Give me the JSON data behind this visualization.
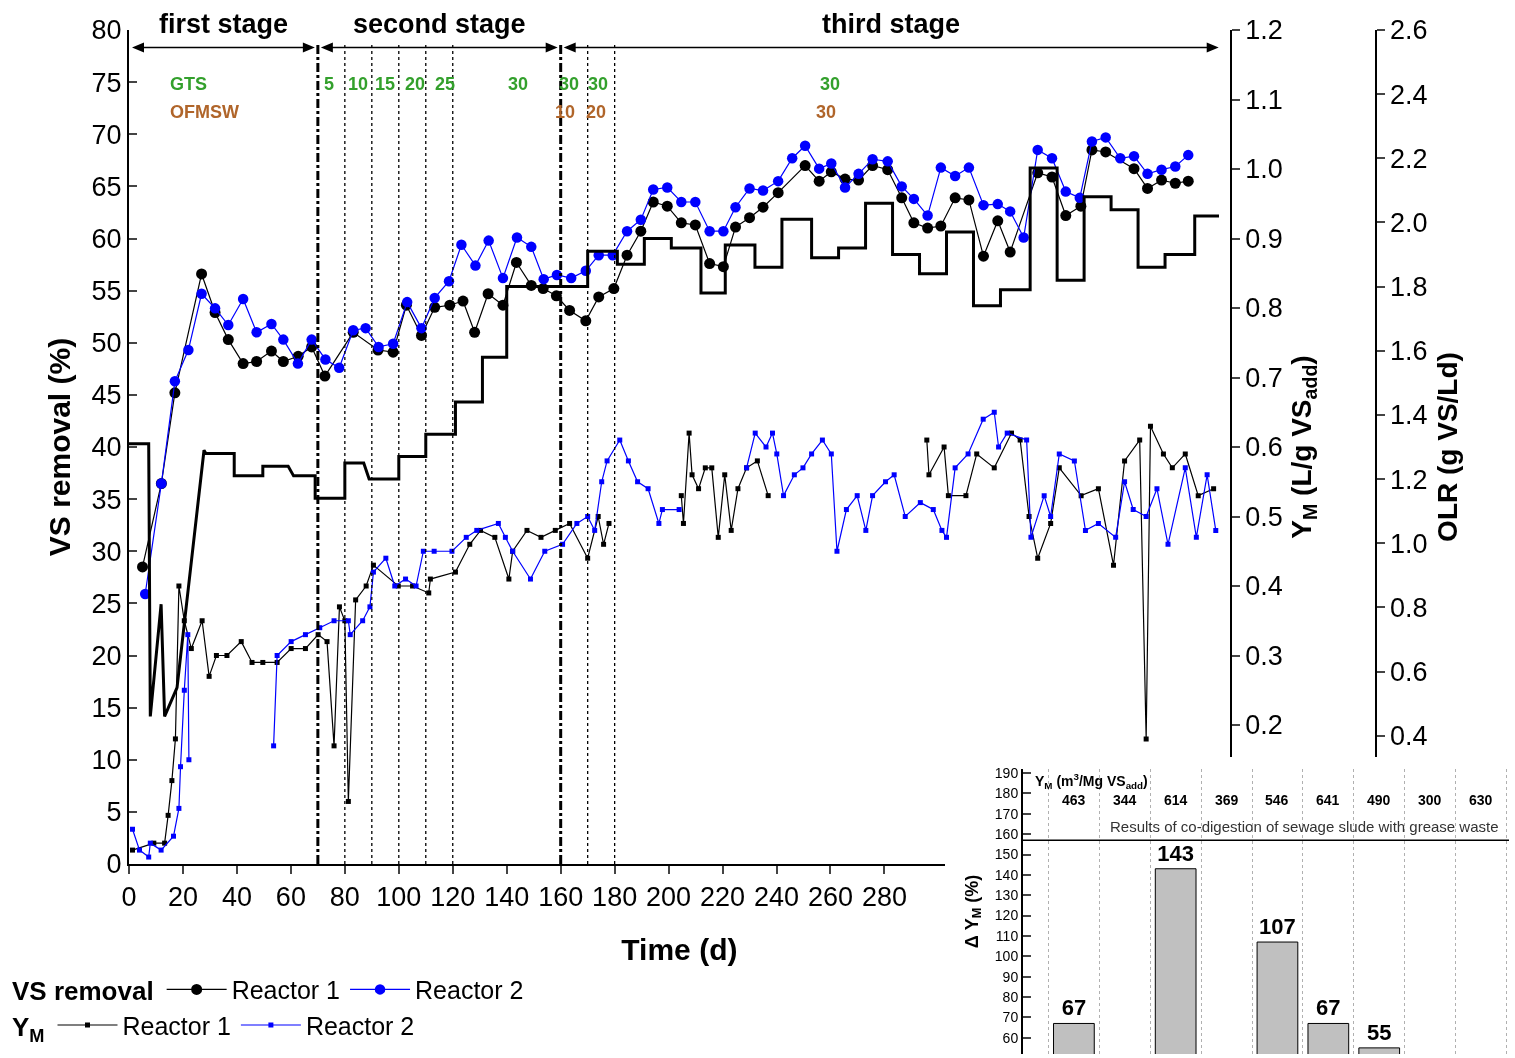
{
  "chart_data": [
    {
      "type": "line",
      "xlabel": "Time (d)",
      "ylabel": "VS removal (%)",
      "y2label": "Y$_{M}$ (L/g VS$_{add}$)",
      "y3label": "OLR (g VS/Ld)",
      "legend_title": "VS removal",
      "legend": "bottom",
      "xlim": [
        0,
        408
      ],
      "xticks": [
        0,
        20,
        40,
        60,
        80,
        100,
        120,
        140,
        160,
        180,
        200,
        220,
        240,
        260,
        280
      ],
      "ylim": [
        0,
        80
      ],
      "yticks": [
        0,
        5,
        10,
        15,
        20,
        25,
        30,
        35,
        40,
        45,
        50,
        55,
        60,
        65,
        70,
        75,
        80
      ],
      "y2lim": [
        0,
        1.2
      ],
      "y2ticks": [
        0.2,
        0.3,
        0.4,
        0.5,
        0.6,
        0.7,
        0.8,
        0.9,
        {
          "value": 1,
          "label": "1.0"
        },
        1.1,
        1.2
      ],
      "y3lim": [
        0,
        2.6
      ],
      "y3ticks": [
        0.4,
        0.6,
        0.8,
        {
          "value": 1,
          "label": "1.0"
        },
        1.2,
        1.4,
        1.6,
        1.8,
        {
          "value": 2,
          "label": "2.0"
        },
        2.2,
        2.4,
        2.6
      ],
      "series": [
        {
          "name": "Reactor 1",
          "color": "#000000",
          "marker": "circle",
          "x": [
            5,
            12,
            17,
            26.9,
            31.9,
            36.8,
            42.3,
            47.3,
            52.8,
            57.2,
            62.7,
            67.7,
            72.6,
            83.1,
            92.3,
            97.9,
            102.8,
            108.4,
            113.3,
            118.9,
            123.8,
            128.1,
            133.1,
            138.6,
            143.6,
            149.1,
            153.5,
            158.4,
            163.3,
            169.3,
            174.1,
            179.7,
            184.6,
            189.7,
            194.3,
            199.5,
            204.7,
            209.9,
            215.2,
            220.3,
            224.8,
            230,
            235,
            240.6,
            250.6,
            255.8,
            260.3,
            265.4,
            270.4,
            275.6,
            281.2,
            286.4,
            290.9,
            296,
            300.9,
            306.2,
            311.3,
            316.7,
            322,
            326.6,
            336.8,
            342.1,
            347.2,
            352.8,
            356.9,
            362,
            372.5,
            377.5,
            382.7,
            387.8,
            392.6
          ],
          "values": [
            28.5,
            36.5,
            45.2,
            56.6,
            52.9,
            50.3,
            48.0,
            48.2,
            49.2,
            48.2,
            48.7,
            49.6,
            46.8,
            51.0,
            49.3,
            49.1,
            53.6,
            50.7,
            53.4,
            53.6,
            54.0,
            51.0,
            54.7,
            53.6,
            57.7,
            55.5,
            55.2,
            54.5,
            53.1,
            52.1,
            54.4,
            55.2,
            58.4,
            60.7,
            63.5,
            63.1,
            61.5,
            61.3,
            57.6,
            57.3,
            61.1,
            62.0,
            63.0,
            64.4,
            67.0,
            65.5,
            66.4,
            65.7,
            65.6,
            67.0,
            66.6,
            63.9,
            61.5,
            61.0,
            61.2,
            63.9,
            63.7,
            58.3,
            61.7,
            58.7,
            66.3,
            65.9,
            62.2,
            63.1,
            68.5,
            68.3,
            66.7,
            64.8,
            65.6,
            65.3,
            65.5
          ]
        },
        {
          "name": "Reactor 2",
          "color": "#0000ff",
          "marker": "circle",
          "x": [
            6,
            12,
            17,
            22,
            26.9,
            31.9,
            36.8,
            42.3,
            47.3,
            52.8,
            57.2,
            62.6,
            67.7,
            72.8,
            77.9,
            83.1,
            87.7,
            92.5,
            97.9,
            103.1,
            108.4,
            113.3,
            118.6,
            123.2,
            128.4,
            133.3,
            138.6,
            143.8,
            149.1,
            153.7,
            158.6,
            163.9,
            169.3,
            174.1,
            179.3,
            184.6,
            189.7,
            194.3,
            199.5,
            204.7,
            209.9,
            215.2,
            220.3,
            224.8,
            230,
            235,
            240.6,
            245.8,
            250.6,
            255.8,
            260.3,
            265.4,
            270.4,
            275.6,
            281.2,
            286.4,
            290.9,
            296,
            300.9,
            306.2,
            311.3,
            316.7,
            322,
            326.6,
            331.6,
            336.8,
            342.1,
            347.2,
            352.4,
            356.9,
            362,
            367.4,
            372.5,
            377.5,
            382.7,
            387.8,
            392.6
          ],
          "values": [
            25.9,
            36.5,
            46.3,
            49.3,
            54.7,
            53.3,
            51.7,
            54.2,
            51.0,
            51.8,
            50.3,
            48.0,
            50.3,
            48.4,
            47.6,
            51.2,
            51.4,
            49.6,
            49.9,
            53.9,
            51.4,
            54.3,
            55.9,
            59.4,
            57.4,
            59.8,
            56.2,
            60.1,
            59.2,
            56.1,
            56.5,
            56.2,
            56.9,
            58.4,
            58.4,
            60.7,
            61.8,
            64.7,
            64.9,
            63.5,
            63.5,
            60.7,
            60.7,
            63.0,
            64.8,
            64.6,
            65.5,
            67.7,
            68.9,
            66.7,
            67.2,
            64.9,
            66.2,
            67.6,
            67.4,
            65.0,
            63.8,
            62.2,
            66.8,
            66.0,
            66.8,
            63.2,
            63.3,
            62.6,
            60.1,
            68.5,
            67.7,
            64.5,
            63.9,
            69.3,
            69.7,
            67.7,
            67.9,
            66.2,
            66.6,
            66.9,
            68.0
          ]
        },
        {
          "name": "Reactor 1",
          "color": "#000000",
          "marker": "square",
          "axis": "y2",
          "x": [
            1.3,
            9.2,
            13.2,
            14.5,
            15.9,
            17.2,
            18.5,
            20.5,
            23.1,
            27.1,
            29.7,
            32.4,
            36.3,
            41.6,
            45.6,
            49.6,
            54.9,
            60.1,
            65.4,
            70.1,
            73.4,
            76.0,
            78.0,
            80.0,
            81.3,
            84.0,
            87.9,
            90.6,
            99.8,
            105.1,
            111.1,
            111.7,
            121.0,
            126.3,
            130.3,
            135.6,
            140.8,
            142.2,
            147.5,
            152.7,
            158.0,
            163.3,
            170.0,
            173.9,
            175.9,
            177.9,
            190,
            204.7,
            205.5,
            207.6,
            208.7,
            211.1,
            213.6,
            216.0,
            218.4,
            220.8,
            223.2,
            225.7,
            228.9,
            232.9,
            236.9,
            260,
            295.7,
            296.5,
            302.1,
            303.7,
            310.2,
            314.2,
            320.7,
            327.1,
            330.3,
            333.6,
            336.8,
            341.6,
            344.8,
            352.9,
            359.3,
            364.9,
            369.0,
            374.6,
            377.0,
            378.6,
            383.4,
            386.7,
            391.5,
            396.3,
            402.0
          ],
          "values": [
            0.02,
            0.03,
            0.03,
            0.07,
            0.12,
            0.18,
            0.4,
            0.35,
            0.31,
            0.35,
            0.27,
            0.3,
            0.3,
            0.32,
            0.29,
            0.29,
            0.29,
            0.31,
            0.31,
            0.33,
            0.32,
            0.17,
            0.37,
            0.35,
            0.09,
            0.38,
            0.4,
            0.43,
            0.4,
            0.4,
            0.39,
            0.41,
            0.42,
            0.46,
            0.48,
            0.47,
            0.41,
            0.45,
            0.48,
            0.47,
            0.48,
            0.49,
            0.44,
            0.5,
            0.46,
            0.49,
            null,
            0.53,
            0.49,
            0.62,
            0.56,
            0.54,
            0.57,
            0.57,
            0.47,
            0.56,
            0.48,
            0.54,
            0.57,
            0.58,
            0.53,
            null,
            0.61,
            0.56,
            0.6,
            0.53,
            0.53,
            0.59,
            0.57,
            0.62,
            0.61,
            0.5,
            0.44,
            0.49,
            0.57,
            0.53,
            0.54,
            0.43,
            0.58,
            0.61,
            0.18,
            0.63,
            0.59,
            0.57,
            0.59,
            0.53,
            0.54
          ]
        },
        {
          "name": "Reactor 2",
          "color": "#0000ff",
          "marker": "square",
          "axis": "y2",
          "x": [
            1.3,
            3.9,
            7.3,
            7.9,
            11.9,
            16.5,
            18.5,
            19.1,
            20.5,
            21.8,
            22.2,
            40,
            53.6,
            54.9,
            60.1,
            65.4,
            70.7,
            76.0,
            81.3,
            82.0,
            86.6,
            89.3,
            90.6,
            95.2,
            98.5,
            102.5,
            106.4,
            109.1,
            113.1,
            119.7,
            125.0,
            128.9,
            136.9,
            139.5,
            142.2,
            148.8,
            154.1,
            160.7,
            166.0,
            170.0,
            172.6,
            175.2,
            177.2,
            181.9,
            185.1,
            188.5,
            192.4,
            196.4,
            197.7,
            203.9,
            215,
            228.9,
            232.1,
            236.1,
            238.5,
            240.1,
            242.6,
            246.6,
            249.8,
            253.0,
            257.0,
            260.3,
            262.4,
            265.9,
            269.9,
            273.1,
            275.6,
            280.4,
            283.6,
            287.7,
            293.3,
            298.1,
            301.3,
            303.0,
            306.2,
            311.0,
            316.6,
            320.7,
            322.3,
            325.5,
            332.7,
            334.3,
            339.2,
            341.6,
            344.8,
            350.4,
            354.5,
            359.3,
            365.7,
            369.0,
            372.2,
            377.0,
            381.0,
            385.1,
            391.5,
            395.6,
            399.6,
            402.8
          ],
          "values": [
            0.05,
            0.02,
            0.01,
            0.03,
            0.02,
            0.04,
            0.08,
            0.14,
            0.25,
            0.33,
            0.15,
            null,
            0.17,
            0.3,
            0.32,
            0.33,
            0.34,
            0.35,
            0.35,
            0.33,
            0.35,
            0.37,
            0.42,
            0.44,
            0.4,
            0.41,
            0.4,
            0.45,
            0.45,
            0.45,
            0.47,
            0.48,
            0.49,
            0.47,
            0.45,
            0.41,
            0.45,
            0.46,
            0.49,
            0.5,
            0.48,
            0.55,
            0.58,
            0.61,
            0.58,
            0.55,
            0.54,
            0.49,
            0.51,
            0.51,
            null,
            0.57,
            0.62,
            0.6,
            0.62,
            0.59,
            0.53,
            0.56,
            0.57,
            0.59,
            0.61,
            0.59,
            0.45,
            0.51,
            0.53,
            0.48,
            0.53,
            0.55,
            0.56,
            0.5,
            0.52,
            0.51,
            0.48,
            0.47,
            0.57,
            0.59,
            0.64,
            0.65,
            0.6,
            0.62,
            0.61,
            0.47,
            0.53,
            0.5,
            0.59,
            0.58,
            0.48,
            0.49,
            0.47,
            0.55,
            0.51,
            0.5,
            0.54,
            0.46,
            0.57,
            0.47,
            0.56,
            0.48
          ]
        },
        {
          "color": "#000000",
          "marker": "none",
          "axis": "y3",
          "x": [
            0,
            7.3,
            7.9,
            11.9,
            13.2,
            17.8,
            27.8,
            28.5,
            39,
            39,
            49.6,
            49.6,
            59,
            61,
            69,
            69,
            80,
            80,
            87,
            89,
            100,
            100,
            110,
            110,
            121,
            121,
            131,
            131,
            140,
            140,
            170,
            170,
            181,
            181,
            191,
            191,
            201,
            201,
            212,
            212,
            221,
            221,
            232,
            232,
            242,
            242,
            253,
            253,
            263,
            263,
            273,
            273,
            283,
            283,
            293,
            293,
            303,
            303,
            313,
            313,
            323,
            323,
            334,
            334,
            344,
            344,
            354,
            354,
            364,
            364,
            374,
            374,
            384,
            384,
            395,
            395,
            404
          ],
          "values": [
            1.31,
            1.31,
            0.46,
            0.81,
            0.46,
            0.55,
            1.29,
            1.28,
            1.28,
            1.21,
            1.21,
            1.24,
            1.24,
            1.21,
            1.21,
            1.14,
            1.14,
            1.25,
            1.25,
            1.2,
            1.2,
            1.27,
            1.27,
            1.34,
            1.34,
            1.44,
            1.44,
            1.58,
            1.58,
            1.8,
            1.8,
            1.91,
            1.91,
            1.87,
            1.87,
            1.95,
            1.95,
            1.92,
            1.92,
            1.78,
            1.78,
            1.93,
            1.93,
            1.86,
            1.86,
            2.01,
            2.01,
            1.89,
            1.89,
            1.92,
            1.92,
            2.06,
            2.06,
            1.9,
            1.9,
            1.84,
            1.84,
            1.97,
            1.97,
            1.74,
            1.74,
            1.79,
            1.79,
            2.17,
            2.17,
            1.82,
            1.82,
            2.08,
            2.08,
            2.04,
            2.04,
            1.86,
            1.86,
            1.9,
            1.9,
            2.02,
            2.02
          ]
        }
      ],
      "ref_lines": [
        {
          "axis": "x",
          "value": 70,
          "line_style": "dashed"
        },
        {
          "axis": "x",
          "value": 80,
          "line_style": "dotted"
        },
        {
          "axis": "x",
          "value": 90,
          "line_style": "dotted"
        },
        {
          "axis": "x",
          "value": 100,
          "line_style": "dotted"
        },
        {
          "axis": "x",
          "value": 110,
          "line_style": "dotted"
        },
        {
          "axis": "x",
          "value": 120,
          "line_style": "dotted"
        },
        {
          "axis": "x",
          "value": 160,
          "line_style": "dashed"
        },
        {
          "axis": "x",
          "value": 170,
          "line_style": "dotted"
        },
        {
          "axis": "x",
          "value": 180,
          "line_style": "dotted"
        }
      ],
      "annotations": [
        "Y$_{M}$",
        "first stage",
        "second stage",
        "third stage",
        "GTS",
        "5",
        "10",
        "15",
        "20",
        "25",
        "30",
        "30",
        "30",
        "30",
        "OFMSW",
        "10",
        "20",
        "30"
      ]
    },
    {
      "type": "bar",
      "ylabel": "Δ Y$_{M}$ (%)",
      "categories": [
        null,
        null,
        null,
        null,
        null,
        null,
        null,
        null,
        null
      ],
      "values": [
        67,
        null,
        143,
        null,
        107,
        67,
        55,
        null,
        null
      ],
      "color": "#c0c0c0",
      "ylim": [
        52,
        192
      ],
      "yticks": [
        60,
        70,
        80,
        90,
        100,
        110,
        120,
        130,
        140,
        150,
        160,
        170,
        180,
        190
      ],
      "grid": "x",
      "tick_labels": "y",
      "data_labels": true,
      "ref_lines": [
        {
          "axis": "y",
          "value": 157,
          "label": "Results of co-digestion of sewage slude with grease waste"
        }
      ],
      "annotations": [
        "Y$_{M}$ (m$^{3}$/Mg VS$_{add}$)",
        "463",
        "344",
        "614",
        "369",
        "546",
        "641",
        "490",
        "300",
        "630"
      ]
    }
  ]
}
